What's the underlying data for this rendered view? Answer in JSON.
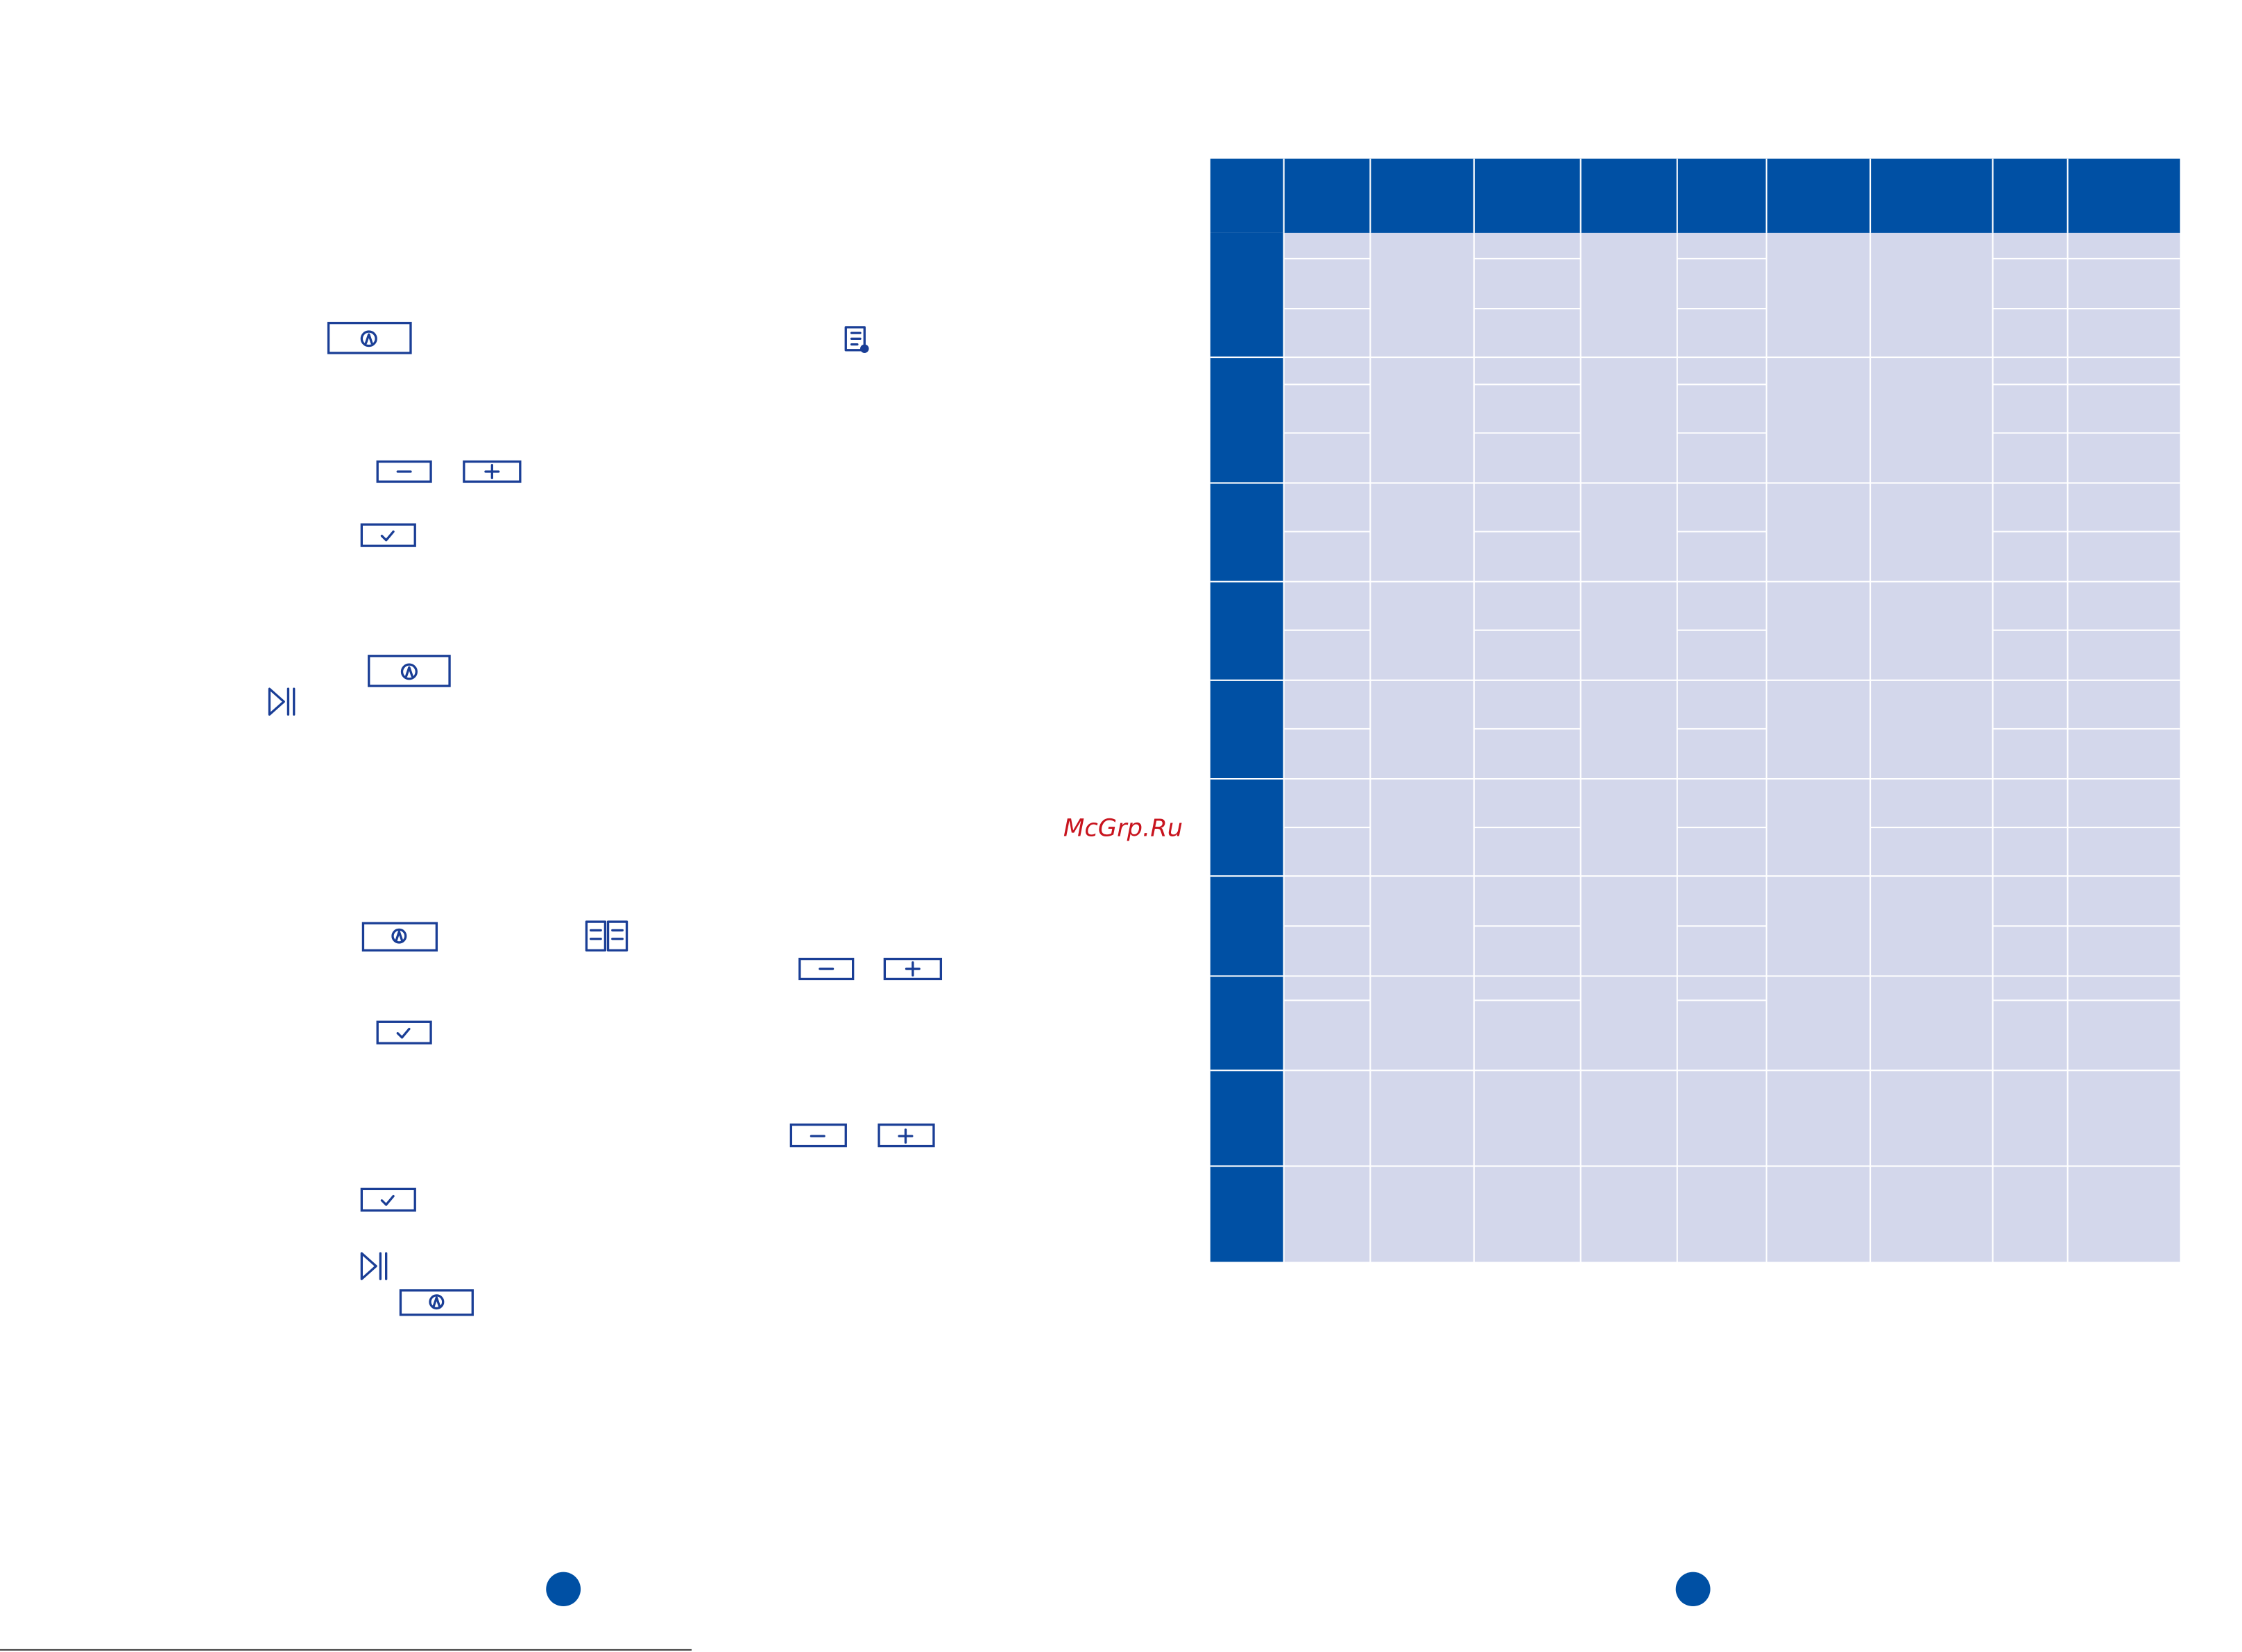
{
  "watermark": "McGrp.Ru"
}
